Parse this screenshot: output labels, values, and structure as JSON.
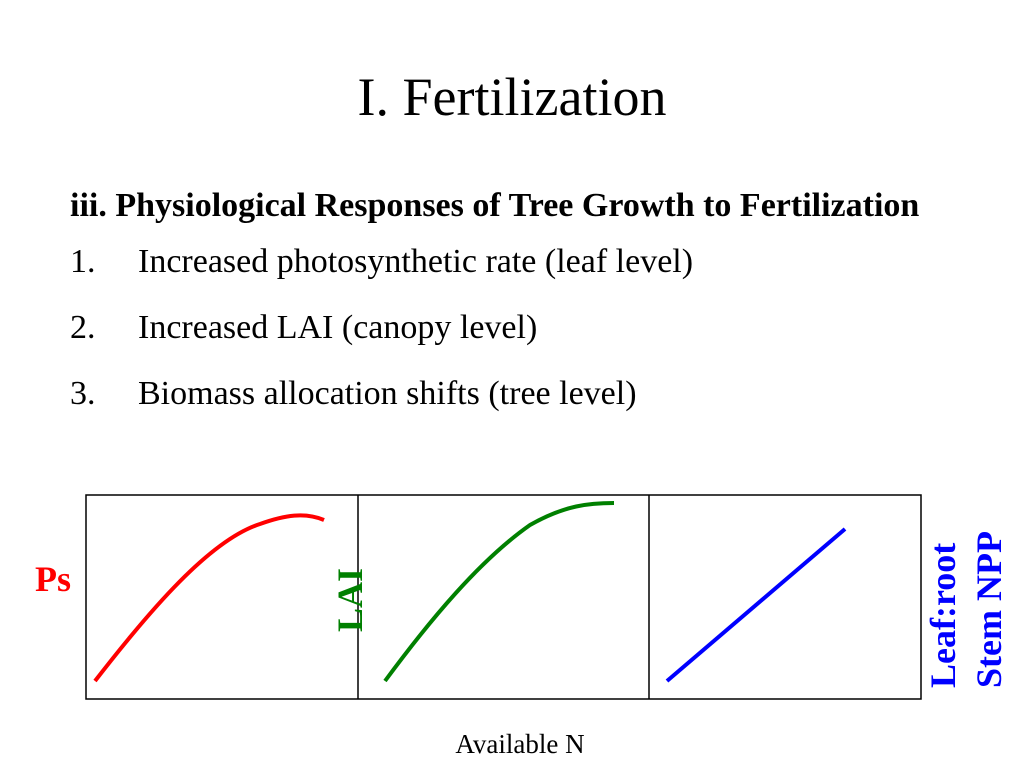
{
  "slide": {
    "title": "I. Fertilization",
    "heading": "iii. Physiological Responses of Tree Growth to Fertilization",
    "items": [
      {
        "number": "1.",
        "text": "Increased photosynthetic rate (leaf level)"
      },
      {
        "number": "2.",
        "text": "Increased LAI (canopy level)"
      },
      {
        "number": "3.",
        "text": "Biomass allocation shifts (tree level)"
      }
    ]
  },
  "diagram": {
    "x_label": "Available N",
    "panels": [
      {
        "y_label": "Ps",
        "color": "#ff0000",
        "shape": "saturating-with-slight-decline"
      },
      {
        "y_label": "LAI",
        "color": "#008000",
        "shape": "saturating"
      },
      {
        "y_label_lines": [
          "Leaf:root",
          "Stem NPP"
        ],
        "color": "#0000ff",
        "shape": "linear-increase"
      }
    ]
  }
}
